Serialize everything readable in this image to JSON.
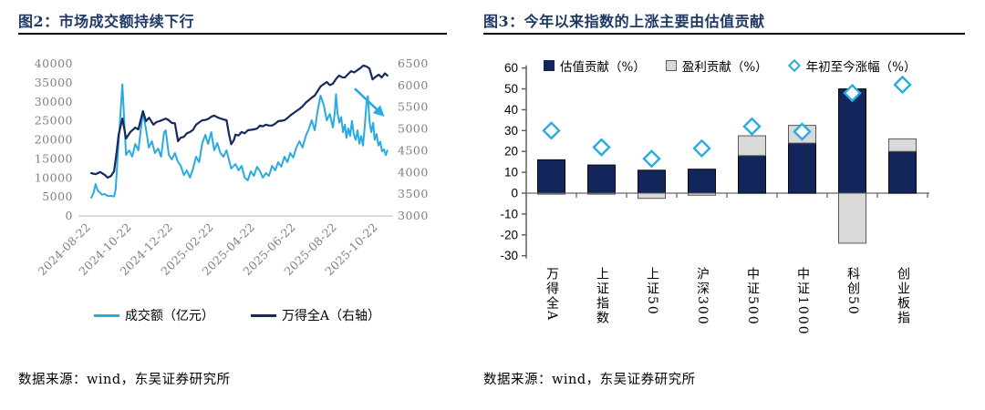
{
  "panels": {
    "left": {
      "title": "图2：市场成交额持续下行",
      "source": "数据来源：wind，东吴证券研究所"
    },
    "right": {
      "title": "图3：今年以来指数的上涨主要由估值贡献",
      "source": "数据来源：wind，东吴证券研究所"
    }
  },
  "colors": {
    "accent_cyan": "#29abe2",
    "navy_bar": "#12265c",
    "navy_line": "#16295c",
    "title_navy": "#1f3864",
    "axis_gray": "#7f7f7f",
    "bar_gray": "#d9d9d9"
  },
  "chart_data": [
    {
      "type": "line",
      "title": "市场成交额持续下行",
      "x_tick_labels": [
        "2024-08-22",
        "2024-10-22",
        "2024-12-22",
        "2025-02-22",
        "2025-04-22",
        "2025-06-22",
        "2025-08-22",
        "2025-10-22"
      ],
      "x_tick_pos": [
        2.1,
        15.4,
        28.8,
        42.1,
        55.5,
        68.8,
        82.2,
        95.5
      ],
      "left_axis": {
        "min": 0,
        "max": 40000,
        "ticks": [
          0,
          5000,
          10000,
          15000,
          20000,
          25000,
          30000,
          35000,
          40000
        ]
      },
      "right_axis": {
        "min": 3000,
        "max": 6500,
        "ticks": [
          3000,
          3500,
          4000,
          4500,
          5000,
          5500,
          6000,
          6500
        ]
      },
      "grid": false,
      "legend_position": "bottom",
      "series": [
        {
          "name": "成交额（亿元）",
          "axis": "left",
          "color": "#29abe2",
          "width": 2,
          "points": [
            [
              3.6,
              4800
            ],
            [
              4.4,
              6200
            ],
            [
              5.0,
              8400
            ],
            [
              5.6,
              6800
            ],
            [
              6.0,
              6470
            ],
            [
              7.0,
              5600
            ],
            [
              8.0,
              5750
            ],
            [
              9.0,
              5200
            ],
            [
              10.0,
              5270
            ],
            [
              11.0,
              5100
            ],
            [
              11.5,
              6950
            ],
            [
              12.5,
              19600
            ],
            [
              13.7,
              34600
            ],
            [
              14.4,
              23700
            ],
            [
              14.9,
              16050
            ],
            [
              15.9,
              17250
            ],
            [
              16.9,
              15570
            ],
            [
              17.9,
              18920
            ],
            [
              18.9,
              17250
            ],
            [
              20.4,
              27300
            ],
            [
              21.4,
              22750
            ],
            [
              22.3,
              17960
            ],
            [
              23.3,
              19640
            ],
            [
              24.3,
              16530
            ],
            [
              25.3,
              17720
            ],
            [
              26.3,
              15570
            ],
            [
              27.3,
              22040
            ],
            [
              27.8,
              22510
            ],
            [
              28.8,
              16050
            ],
            [
              29.8,
              14850
            ],
            [
              30.8,
              16530
            ],
            [
              31.7,
              14370
            ],
            [
              32.7,
              13170
            ],
            [
              33.7,
              10780
            ],
            [
              34.7,
              11980
            ],
            [
              35.7,
              10060
            ],
            [
              36.7,
              12460
            ],
            [
              37.7,
              15570
            ],
            [
              38.7,
              14130
            ],
            [
              39.7,
              19160
            ],
            [
              40.7,
              21320
            ],
            [
              41.6,
              18920
            ],
            [
              42.6,
              22040
            ],
            [
              43.6,
              17250
            ],
            [
              44.6,
              19160
            ],
            [
              45.6,
              16530
            ],
            [
              46.6,
              15570
            ],
            [
              47.6,
              17250
            ],
            [
              49.1,
              12460
            ],
            [
              50.5,
              13650
            ],
            [
              51.5,
              11980
            ],
            [
              52.5,
              13170
            ],
            [
              53.5,
              10060
            ],
            [
              54.5,
              9340
            ],
            [
              55.5,
              11740
            ],
            [
              56.5,
              10540
            ],
            [
              57.5,
              12940
            ],
            [
              58.5,
              11740
            ],
            [
              59.4,
              10060
            ],
            [
              60.4,
              11260
            ],
            [
              61.4,
              10540
            ],
            [
              62.4,
              13170
            ],
            [
              63.4,
              11980
            ],
            [
              64.4,
              14130
            ],
            [
              65.4,
              12940
            ],
            [
              66.4,
              15570
            ],
            [
              67.4,
              14130
            ],
            [
              68.3,
              16530
            ],
            [
              69.3,
              15330
            ],
            [
              70.3,
              17960
            ],
            [
              71.3,
              19640
            ],
            [
              72.3,
              17960
            ],
            [
              73.3,
              20840
            ],
            [
              74.3,
              22750
            ],
            [
              75.3,
              25150
            ],
            [
              76.3,
              22510
            ],
            [
              77.2,
              27550
            ],
            [
              78.2,
              31620
            ],
            [
              79.2,
              29220
            ],
            [
              80.2,
              25150
            ],
            [
              81.2,
              26830
            ],
            [
              82.2,
              23230
            ],
            [
              82.8,
              27000
            ],
            [
              83.2,
              32000
            ],
            [
              83.7,
              27000
            ],
            [
              84.3,
              24500
            ],
            [
              84.9,
              26000
            ],
            [
              85.5,
              22000
            ],
            [
              86.1,
              24000
            ],
            [
              86.6,
              20500
            ],
            [
              87.2,
              23000
            ],
            [
              87.8,
              21000
            ],
            [
              88.4,
              25000
            ],
            [
              89.0,
              21500
            ],
            [
              89.6,
              20000
            ],
            [
              90.2,
              22500
            ],
            [
              90.8,
              19000
            ],
            [
              91.4,
              21000
            ],
            [
              92.0,
              18500
            ],
            [
              92.6,
              24000
            ],
            [
              93.2,
              30500
            ],
            [
              93.6,
              31500
            ],
            [
              94.1,
              25000
            ],
            [
              94.7,
              22000
            ],
            [
              95.3,
              24500
            ],
            [
              95.8,
              20000
            ],
            [
              96.4,
              21500
            ],
            [
              97.0,
              18500
            ],
            [
              97.6,
              19500
            ],
            [
              98.2,
              17000
            ],
            [
              98.8,
              17500
            ],
            [
              99.4,
              16000
            ],
            [
              99.9,
              17200
            ]
          ]
        },
        {
          "name": "万得全A（右轴）",
          "axis": "right",
          "color": "#16295c",
          "width": 2.2,
          "points": [
            [
              3.6,
              3985
            ],
            [
              5.0,
              3960
            ],
            [
              6.5,
              4010
            ],
            [
              8.0,
              3940
            ],
            [
              8.9,
              3880
            ],
            [
              10.0,
              3920
            ],
            [
              11.0,
              4030
            ],
            [
              11.9,
              4500
            ],
            [
              12.5,
              4870
            ],
            [
              13.7,
              5240
            ],
            [
              14.9,
              4780
            ],
            [
              16.3,
              4930
            ],
            [
              17.9,
              5030
            ],
            [
              18.9,
              4990
            ],
            [
              20.4,
              5410
            ],
            [
              21.4,
              5180
            ],
            [
              22.4,
              5260
            ],
            [
              23.8,
              5100
            ],
            [
              24.8,
              5160
            ],
            [
              25.8,
              5180
            ],
            [
              27.8,
              5240
            ],
            [
              28.8,
              5200
            ],
            [
              29.8,
              5140
            ],
            [
              30.8,
              5130
            ],
            [
              31.8,
              4720
            ],
            [
              32.7,
              4800
            ],
            [
              33.7,
              4820
            ],
            [
              34.7,
              4900
            ],
            [
              35.7,
              4930
            ],
            [
              36.7,
              4980
            ],
            [
              37.7,
              5100
            ],
            [
              38.7,
              5150
            ],
            [
              39.7,
              5200
            ],
            [
              40.7,
              5210
            ],
            [
              41.6,
              5230
            ],
            [
              42.6,
              5280
            ],
            [
              43.6,
              5310
            ],
            [
              44.6,
              5270
            ],
            [
              45.6,
              5240
            ],
            [
              46.6,
              5220
            ],
            [
              47.6,
              5200
            ],
            [
              48.4,
              4880
            ],
            [
              49.1,
              4650
            ],
            [
              50.0,
              4750
            ],
            [
              50.5,
              4870
            ],
            [
              51.5,
              4850
            ],
            [
              52.5,
              4930
            ],
            [
              53.5,
              4900
            ],
            [
              54.5,
              4970
            ],
            [
              55.5,
              4980
            ],
            [
              56.5,
              4990
            ],
            [
              57.5,
              5010
            ],
            [
              58.5,
              5080
            ],
            [
              59.4,
              5060
            ],
            [
              60.4,
              5100
            ],
            [
              61.4,
              5080
            ],
            [
              62.4,
              5080
            ],
            [
              63.4,
              5120
            ],
            [
              64.4,
              5180
            ],
            [
              65.4,
              5190
            ],
            [
              66.4,
              5200
            ],
            [
              67.4,
              5250
            ],
            [
              68.3,
              5310
            ],
            [
              69.3,
              5360
            ],
            [
              70.3,
              5410
            ],
            [
              71.3,
              5460
            ],
            [
              72.3,
              5520
            ],
            [
              73.3,
              5600
            ],
            [
              74.3,
              5660
            ],
            [
              75.3,
              5720
            ],
            [
              76.3,
              5770
            ],
            [
              77.2,
              5870
            ],
            [
              78.2,
              5980
            ],
            [
              79.2,
              6030
            ],
            [
              80.2,
              6080
            ],
            [
              81.2,
              6010
            ],
            [
              82.2,
              6040
            ],
            [
              83.2,
              6150
            ],
            [
              84.2,
              6230
            ],
            [
              85.2,
              6190
            ],
            [
              86.1,
              6185
            ],
            [
              87.1,
              6260
            ],
            [
              88.1,
              6330
            ],
            [
              89.1,
              6300
            ],
            [
              90.1,
              6350
            ],
            [
              91.1,
              6400
            ],
            [
              92.1,
              6460
            ],
            [
              93.1,
              6440
            ],
            [
              94.1,
              6390
            ],
            [
              95.1,
              6140
            ],
            [
              96.1,
              6200
            ],
            [
              97.1,
              6250
            ],
            [
              98.1,
              6185
            ],
            [
              99.1,
              6280
            ],
            [
              99.9,
              6230
            ]
          ]
        }
      ],
      "annotation_arrow": {
        "color": "#29abe2",
        "from": [
          89.3,
          33500
        ],
        "to": [
          99.0,
          26100
        ]
      }
    },
    {
      "type": "bar",
      "title": "今年以来指数的上涨主要由估值贡献",
      "categories": [
        "万得全A",
        "上证指数",
        "上证50",
        "沪深300",
        "中证500",
        "中证1000",
        "科创50",
        "创业板指"
      ],
      "ylim": [
        -30,
        60
      ],
      "y_ticks": [
        60,
        50,
        40,
        30,
        20,
        10,
        0,
        -10,
        -20,
        -30
      ],
      "grid": false,
      "legend_position": "top",
      "series": [
        {
          "name": "估值贡献（%）",
          "type": "bar",
          "color": "#12265c",
          "values": [
            16,
            13.5,
            11,
            11.5,
            18,
            24,
            50,
            20
          ]
        },
        {
          "name": "盈利贡献（%）",
          "type": "bar",
          "color": "#d9d9d9",
          "values": [
            -0.5,
            -0.5,
            -2.5,
            -1,
            9.5,
            8.5,
            -24,
            6
          ]
        },
        {
          "name": "年初至今涨幅（%）",
          "type": "scatter",
          "marker": "diamond",
          "color": "#29abe2",
          "values": [
            30,
            22,
            16.5,
            21.5,
            32,
            29.5,
            48,
            52
          ]
        }
      ]
    }
  ]
}
